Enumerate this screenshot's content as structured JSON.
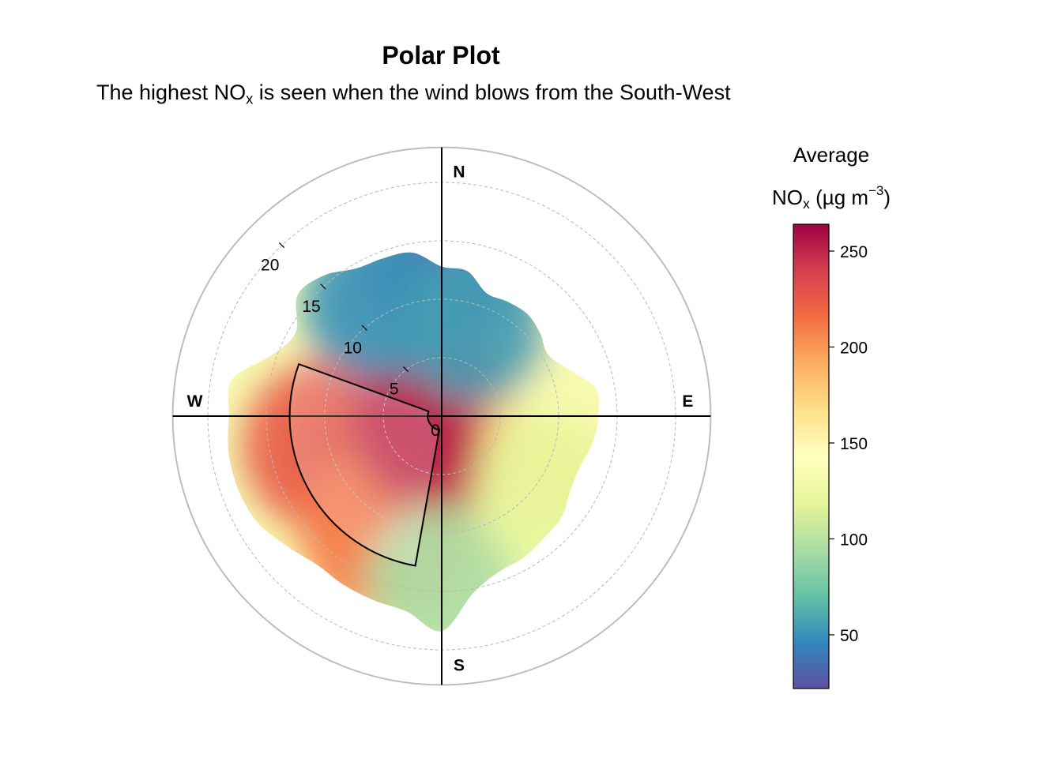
{
  "chart_data": {
    "type": "polar",
    "title": "Polar Plot",
    "subtitle": {
      "before": "The highest NO",
      "sub": "x",
      "after": " is seen when the wind blows from the South-West"
    },
    "compass": {
      "north": "N",
      "east": "E",
      "south": "S",
      "west": "W"
    },
    "radial_axis": {
      "ticks": [
        0,
        5,
        10,
        15,
        20
      ],
      "max": 23
    },
    "colorbar": {
      "title_line1": "Average",
      "title_line2_main": "NO",
      "title_line2_sub": "x",
      "title_line2_unit": " (µg m",
      "title_line2_sup": "−3",
      "title_line2_close": ")",
      "min": 22,
      "max": 264,
      "ticks": [
        50,
        100,
        150,
        200,
        250
      ],
      "colors": [
        "#5E4FA2",
        "#3288BD",
        "#66C2A5",
        "#ABDDA4",
        "#E6F598",
        "#FFFFBF",
        "#FEE08B",
        "#FDAE61",
        "#F46D43",
        "#D53E4F",
        "#9E0142"
      ]
    },
    "highlighted_sector": {
      "from_direction_deg": 190,
      "to_direction_deg": 290,
      "inner_speed": 1.2,
      "outer_speed": 13
    },
    "surface": {
      "outline_speed_by_direction": [
        {
          "dir": 0,
          "speed": 12.8
        },
        {
          "dir": 10,
          "speed": 12.6
        },
        {
          "dir": 20,
          "speed": 11.2
        },
        {
          "dir": 30,
          "speed": 11.3
        },
        {
          "dir": 40,
          "speed": 11.4
        },
        {
          "dir": 50,
          "speed": 11.0
        },
        {
          "dir": 60,
          "speed": 10.5
        },
        {
          "dir": 70,
          "speed": 11.6
        },
        {
          "dir": 80,
          "speed": 13.4
        },
        {
          "dir": 90,
          "speed": 13.4
        },
        {
          "dir": 100,
          "speed": 13.1
        },
        {
          "dir": 110,
          "speed": 12.6
        },
        {
          "dir": 120,
          "speed": 12.7
        },
        {
          "dir": 130,
          "speed": 13.4
        },
        {
          "dir": 140,
          "speed": 13.6
        },
        {
          "dir": 150,
          "speed": 14.0
        },
        {
          "dir": 160,
          "speed": 14.2
        },
        {
          "dir": 170,
          "speed": 15.4
        },
        {
          "dir": 180,
          "speed": 18.4
        },
        {
          "dir": 190,
          "speed": 17.0
        },
        {
          "dir": 200,
          "speed": 16.8
        },
        {
          "dir": 210,
          "speed": 16.7
        },
        {
          "dir": 220,
          "speed": 16.6
        },
        {
          "dir": 230,
          "speed": 17.3
        },
        {
          "dir": 240,
          "speed": 18.2
        },
        {
          "dir": 250,
          "speed": 18.5
        },
        {
          "dir": 260,
          "speed": 18.5
        },
        {
          "dir": 270,
          "speed": 18.2
        },
        {
          "dir": 280,
          "speed": 18.2
        },
        {
          "dir": 290,
          "speed": 15.4
        },
        {
          "dir": 300,
          "speed": 14.4
        },
        {
          "dir": 310,
          "speed": 16.1
        },
        {
          "dir": 320,
          "speed": 15.7
        },
        {
          "dir": 330,
          "speed": 14.6
        },
        {
          "dir": 340,
          "speed": 14.4
        },
        {
          "dir": 350,
          "speed": 14.2
        }
      ],
      "concentration_hotspots": [
        {
          "dir": 235,
          "speed": 5.5,
          "value": 262
        },
        {
          "dir": 255,
          "speed": 10,
          "value": 225
        },
        {
          "dir": 205,
          "speed": 11,
          "value": 210
        },
        {
          "dir": 200,
          "speed": 1,
          "value": 250
        },
        {
          "dir": 100,
          "speed": 10,
          "value": 170
        },
        {
          "dir": 75,
          "speed": 12.5,
          "value": 135
        },
        {
          "dir": 0,
          "speed": 12,
          "value": 30
        },
        {
          "dir": 330,
          "speed": 11,
          "value": 50
        },
        {
          "dir": 20,
          "speed": 8,
          "value": 55
        },
        {
          "dir": 180,
          "speed": 14,
          "value": 95
        },
        {
          "dir": 125,
          "speed": 11,
          "value": 120
        }
      ]
    }
  }
}
